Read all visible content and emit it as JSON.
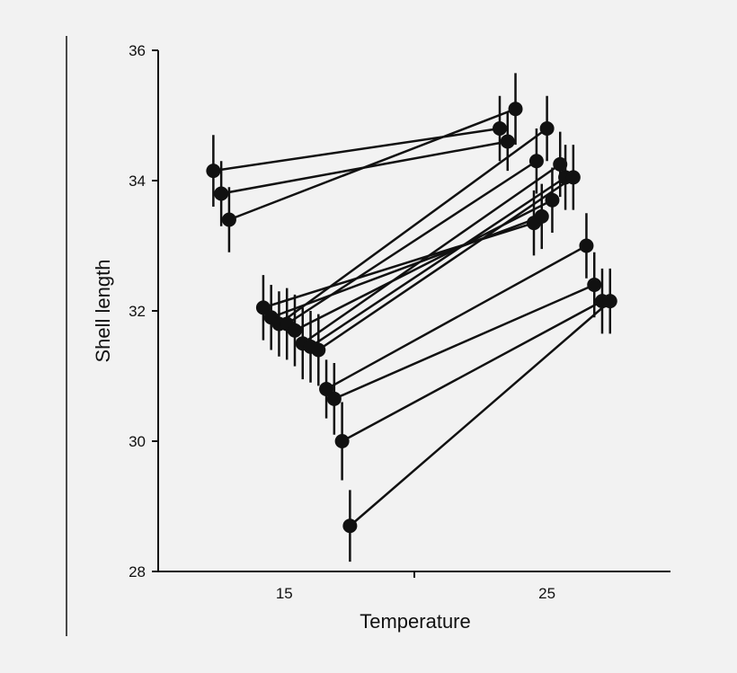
{
  "chart_data": {
    "type": "scatter",
    "xlabel": "Temperature",
    "ylabel": "Shell length",
    "x_ticks": [
      15,
      25
    ],
    "y_ticks": [
      28,
      30,
      32,
      34,
      36
    ],
    "xlim": [
      10.2,
      29.7
    ],
    "ylim": [
      28,
      36
    ],
    "grid": false,
    "legend": "none",
    "colors": {
      "marks": "#111111",
      "background": "#f2f2f2"
    },
    "pairs": [
      {
        "x1": 12.3,
        "y1": 34.15,
        "e1": 0.55,
        "x2": 23.2,
        "y2": 34.8,
        "e2": 0.5
      },
      {
        "x1": 12.6,
        "y1": 33.8,
        "e1": 0.5,
        "x2": 23.5,
        "y2": 34.6,
        "e2": 0.45
      },
      {
        "x1": 12.9,
        "y1": 33.4,
        "e1": 0.5,
        "x2": 23.8,
        "y2": 35.1,
        "e2": 0.55
      },
      {
        "x1": 14.2,
        "y1": 32.05,
        "e1": 0.5,
        "x2": 24.5,
        "y2": 33.35,
        "e2": 0.5
      },
      {
        "x1": 14.5,
        "y1": 31.9,
        "e1": 0.5,
        "x2": 24.8,
        "y2": 33.45,
        "e2": 0.5
      },
      {
        "x1": 14.8,
        "y1": 31.8,
        "e1": 0.5,
        "x2": 25.0,
        "y2": 34.8,
        "e2": 0.5
      },
      {
        "x1": 15.1,
        "y1": 31.8,
        "e1": 0.55,
        "x2": 24.6,
        "y2": 34.3,
        "e2": 0.5
      },
      {
        "x1": 15.4,
        "y1": 31.7,
        "e1": 0.55,
        "x2": 25.2,
        "y2": 33.7,
        "e2": 0.5
      },
      {
        "x1": 15.7,
        "y1": 31.5,
        "e1": 0.55,
        "x2": 25.5,
        "y2": 34.25,
        "e2": 0.5
      },
      {
        "x1": 16.0,
        "y1": 31.45,
        "e1": 0.55,
        "x2": 25.7,
        "y2": 34.05,
        "e2": 0.5
      },
      {
        "x1": 16.3,
        "y1": 31.4,
        "e1": 0.55,
        "x2": 26.0,
        "y2": 34.05,
        "e2": 0.5
      },
      {
        "x1": 16.6,
        "y1": 30.8,
        "e1": 0.45,
        "x2": 26.5,
        "y2": 33.0,
        "e2": 0.5
      },
      {
        "x1": 16.9,
        "y1": 30.65,
        "e1": 0.55,
        "x2": 26.8,
        "y2": 32.4,
        "e2": 0.5
      },
      {
        "x1": 17.2,
        "y1": 30.0,
        "e1": 0.6,
        "x2": 27.1,
        "y2": 32.15,
        "e2": 0.5
      },
      {
        "x1": 17.5,
        "y1": 28.7,
        "e1": 0.55,
        "x2": 27.4,
        "y2": 32.15,
        "e2": 0.5
      }
    ]
  }
}
